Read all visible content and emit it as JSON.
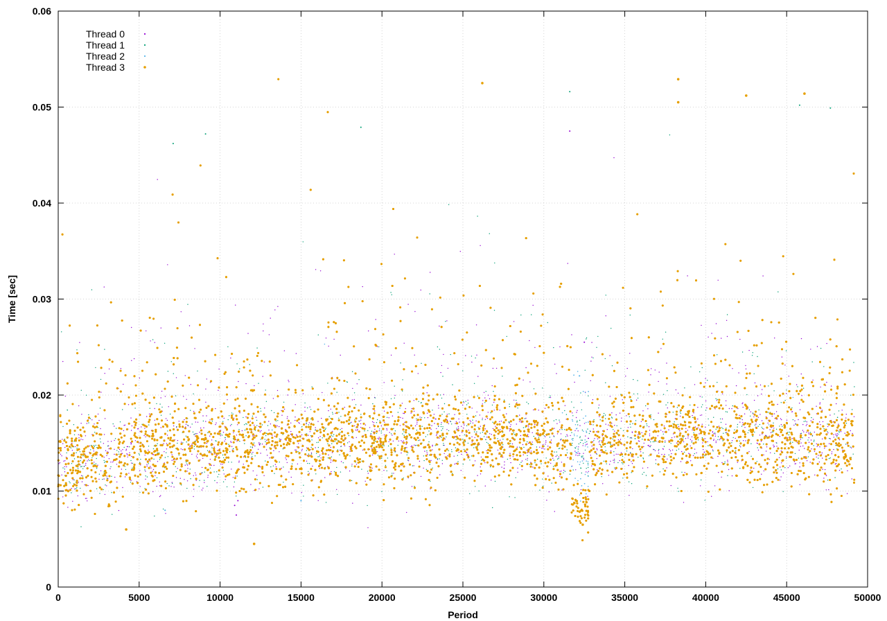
{
  "chart_data": {
    "type": "scatter",
    "title": "",
    "xlabel": "Period",
    "ylabel": "Time [sec]",
    "xlim": [
      0,
      50000
    ],
    "ylim": [
      0,
      0.06
    ],
    "x_ticks": [
      0,
      5000,
      10000,
      15000,
      20000,
      25000,
      30000,
      35000,
      40000,
      45000,
      50000
    ],
    "y_ticks": [
      0,
      0.01,
      0.02,
      0.03,
      0.04,
      0.05,
      0.06
    ],
    "x_tick_labels": [
      "0",
      "5000",
      "10000",
      "15000",
      "20000",
      "25000",
      "30000",
      "35000",
      "40000",
      "45000",
      "50000"
    ],
    "y_tick_labels": [
      "0",
      "0.01",
      "0.02",
      "0.03",
      "0.04",
      "0.05",
      "0.06"
    ],
    "grid": true,
    "legend_position": "top-left",
    "x_data_extent": [
      0,
      49200
    ],
    "series": [
      {
        "name": "Thread 0",
        "color": "#9400d3",
        "marker": "dot",
        "typical_range": [
          0.009,
          0.02
        ],
        "notable_points": [
          [
            11000,
            0.0075
          ],
          [
            10900,
            0.0085
          ],
          [
            11100,
            0.009
          ],
          [
            32500,
            0.0255
          ],
          [
            31600,
            0.0475
          ]
        ]
      },
      {
        "name": "Thread 1",
        "color": "#009e73",
        "marker": "dot",
        "typical_range": [
          0.009,
          0.02
        ],
        "notable_points": [
          [
            7100,
            0.0462
          ],
          [
            9100,
            0.0472
          ],
          [
            18700,
            0.0479
          ],
          [
            31600,
            0.0516
          ],
          [
            47700,
            0.0499
          ],
          [
            45800,
            0.0502
          ]
        ]
      },
      {
        "name": "Thread 2",
        "color": "#56b4e9",
        "marker": "dot",
        "typical_range": [
          0.009,
          0.02
        ],
        "notable_points": [
          [
            32000,
            0.014
          ],
          [
            32200,
            0.022
          ],
          [
            6600,
            0.008
          ],
          [
            15000,
            0.009
          ]
        ]
      },
      {
        "name": "Thread 3",
        "color": "#e69f00",
        "marker": "dot",
        "typical_range": [
          0.009,
          0.02
        ],
        "notable_points": [
          [
            26200,
            0.0525
          ],
          [
            38300,
            0.0529
          ],
          [
            46100,
            0.0514
          ],
          [
            42500,
            0.0512
          ],
          [
            38300,
            0.0505
          ],
          [
            32400,
            0.0065
          ],
          [
            12100,
            0.0045
          ],
          [
            4200,
            0.006
          ]
        ]
      }
    ]
  }
}
